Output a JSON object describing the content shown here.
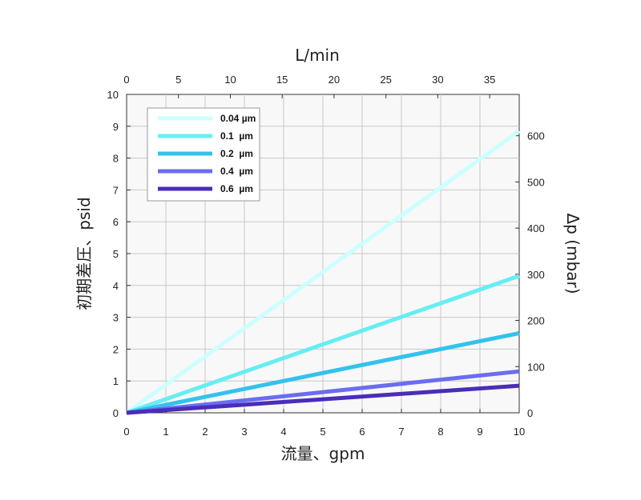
{
  "chart_data": {
    "type": "line",
    "xlabel": "流量、gpm",
    "ylabel": "初期差圧、psid",
    "x2label": "L/min",
    "y2label": "Δp (mbar)",
    "xlim": [
      0,
      10
    ],
    "ylim": [
      0,
      10
    ],
    "x2lim": [
      0,
      37.85
    ],
    "y2lim": [
      0,
      689.5
    ],
    "x_ticks": [
      "0",
      "1",
      "2",
      "3",
      "4",
      "5",
      "6",
      "7",
      "8",
      "9",
      "10"
    ],
    "y_ticks": [
      "0",
      "1",
      "2",
      "3",
      "4",
      "5",
      "6",
      "7",
      "8",
      "9",
      "10"
    ],
    "x2_ticks": [
      "0",
      "5",
      "10",
      "15",
      "20",
      "25",
      "30",
      "35"
    ],
    "y2_ticks": [
      "0",
      "100",
      "200",
      "300",
      "400",
      "500",
      "600"
    ],
    "grid": true,
    "legend_position": "top-left",
    "series": [
      {
        "name": "0.04 µm",
        "color": "#ccffff",
        "x": [
          0,
          10
        ],
        "y": [
          0,
          8.85
        ]
      },
      {
        "name": "0.1  µm",
        "color": "#66eef3",
        "x": [
          0,
          10
        ],
        "y": [
          0,
          4.3
        ]
      },
      {
        "name": "0.2  µm",
        "color": "#33c2ee",
        "x": [
          0,
          10
        ],
        "y": [
          0,
          2.5
        ]
      },
      {
        "name": "0.4  µm",
        "color": "#6a6df0",
        "x": [
          0,
          10
        ],
        "y": [
          0,
          1.3
        ]
      },
      {
        "name": "0.6  µm",
        "color": "#4a2db8",
        "x": [
          0,
          10
        ],
        "y": [
          0,
          0.85
        ]
      }
    ]
  }
}
